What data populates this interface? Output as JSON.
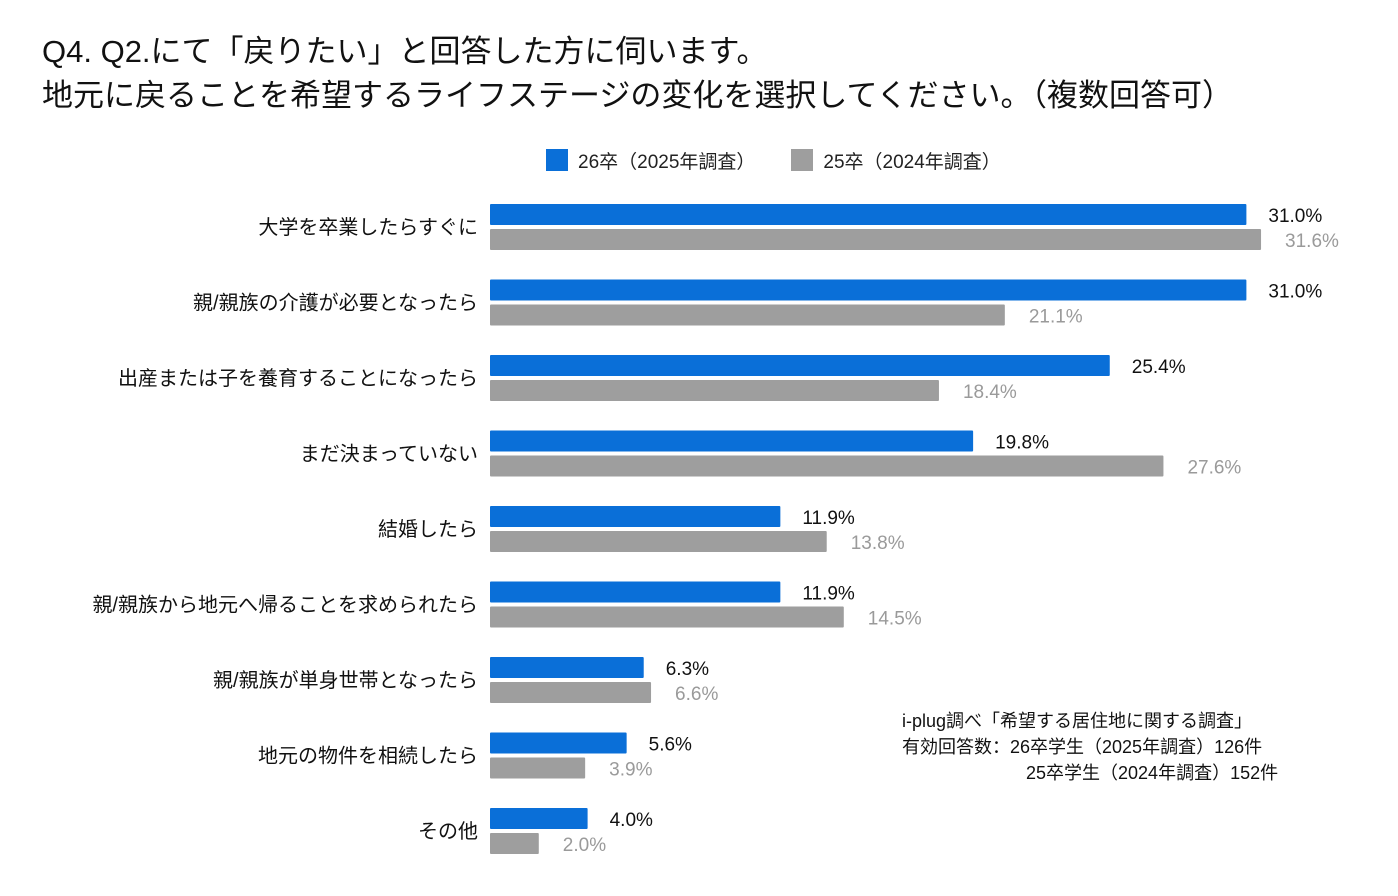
{
  "title": {
    "line1": "Q4. Q2.にて「戻りたい」と回答した方に伺います。",
    "line2": "地元に戻ることを希望するライフステージの変化を選択してください。（複数回答可）"
  },
  "legend": [
    {
      "label": "26卒（2025年調査）",
      "color": "#0a6fd8"
    },
    {
      "label": "25卒（2024年調査）",
      "color": "#9e9e9e"
    }
  ],
  "note": {
    "line1": "i-plug調べ「希望する居住地に関する調査」",
    "line2": "有効回答数：26卒学生（2025年調査）126件",
    "line3": "25卒学生（2024年調査）152件"
  },
  "chart_data": {
    "type": "bar",
    "orientation": "horizontal",
    "title": "地元に戻ることを希望するライフステージの変化",
    "unit": "%",
    "xlim": [
      0,
      40
    ],
    "categories": [
      "大学を卒業したらすぐに",
      "親/親族の介護が必要となったら",
      "出産または子を養育することになったら",
      "まだ決まっていない",
      "結婚したら",
      "親/親族から地元へ帰ることを求められたら",
      "親/親族が単身世帯となったら",
      "地元の物件を相続したら",
      "その他"
    ],
    "series": [
      {
        "name": "26卒（2025年調査）",
        "color": "#0a6fd8",
        "values": [
          31.0,
          31.0,
          25.4,
          19.8,
          11.9,
          11.9,
          6.3,
          5.6,
          4.0
        ],
        "labels": [
          "31.0%",
          "31.0%",
          "25.4%",
          "19.8%",
          "11.9%",
          "11.9%",
          "6.3%",
          "5.6%",
          "4.0%"
        ]
      },
      {
        "name": "25卒（2024年調査）",
        "color": "#9e9e9e",
        "values": [
          31.6,
          21.1,
          18.4,
          27.6,
          13.8,
          14.5,
          6.6,
          3.9,
          2.0
        ],
        "labels": [
          "31.6%",
          "21.1%",
          "18.4%",
          "27.6%",
          "13.8%",
          "14.5%",
          "6.6%",
          "3.9%",
          "2.0%"
        ]
      }
    ]
  }
}
